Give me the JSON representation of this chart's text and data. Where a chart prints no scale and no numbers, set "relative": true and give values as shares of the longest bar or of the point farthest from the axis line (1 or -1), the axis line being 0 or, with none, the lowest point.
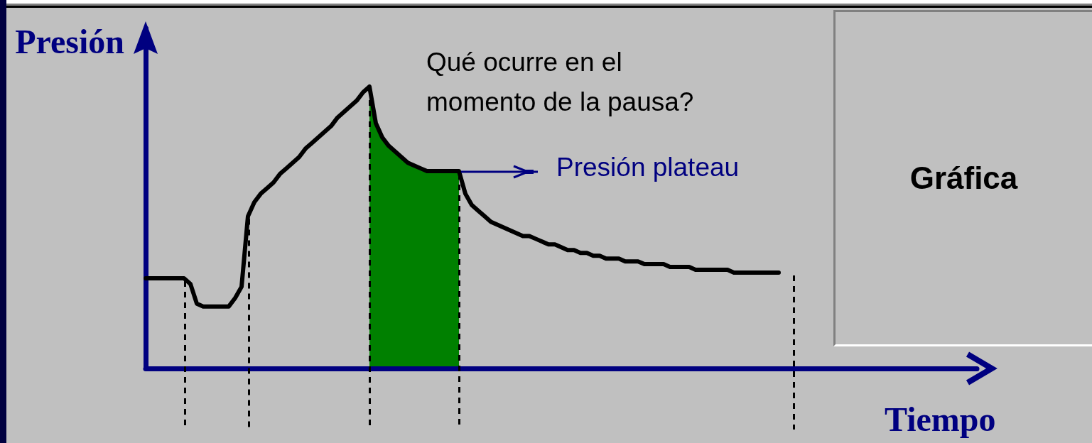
{
  "chart_data": {
    "type": "line",
    "relative": true,
    "xlabel": "Tiempo",
    "ylabel": "Presión",
    "categories": [
      null,
      null,
      null,
      null,
      null,
      null,
      null,
      null,
      null,
      null,
      null,
      null,
      null,
      null,
      null,
      null,
      null,
      null,
      null,
      null,
      null,
      null,
      null,
      null,
      null,
      null,
      null,
      null,
      null,
      null,
      null,
      null,
      null,
      null,
      null,
      null,
      null,
      null,
      null,
      null,
      null,
      null,
      null,
      null,
      null,
      null,
      null,
      null,
      null,
      null,
      null,
      null,
      null,
      null,
      null,
      null,
      null,
      null,
      null,
      null,
      null,
      null,
      null,
      null,
      null,
      null,
      null,
      null,
      null,
      null,
      null,
      null,
      null,
      null,
      null,
      null,
      null,
      null,
      null,
      null,
      null,
      null,
      null,
      null,
      null,
      null,
      null,
      null,
      null,
      null,
      null,
      null,
      null,
      null,
      null,
      null,
      null,
      null,
      null,
      null,
      null,
      null,
      null,
      null,
      null,
      null,
      null,
      null,
      null,
      null,
      null,
      null,
      null,
      null,
      null,
      null,
      null,
      null,
      null,
      null,
      null,
      null,
      null,
      null,
      null,
      null,
      null,
      null,
      null,
      null,
      null
    ],
    "series": [
      {
        "color": "#000000",
        "values": [
          0.32,
          0.32,
          0.32,
          0.32,
          0.32,
          0.32,
          0.32,
          0.3,
          0.23,
          0.22,
          0.22,
          0.22,
          0.22,
          0.22,
          0.25,
          0.29,
          0.54,
          0.59,
          0.62,
          0.64,
          0.66,
          0.69,
          0.71,
          0.73,
          0.75,
          0.78,
          0.8,
          0.82,
          0.84,
          0.86,
          0.89,
          0.91,
          0.93,
          0.95,
          0.98,
          1,
          0.87,
          0.82,
          0.79,
          0.77,
          0.75,
          0.73,
          0.72,
          0.71,
          0.7,
          0.7,
          0.7,
          0.7,
          0.7,
          0.7,
          0.62,
          0.58,
          0.56,
          0.54,
          0.52,
          0.51,
          0.5,
          0.49,
          0.48,
          0.47,
          0.47,
          0.46,
          0.45,
          0.44,
          0.44,
          0.43,
          0.42,
          0.42,
          0.41,
          0.41,
          0.4,
          0.4,
          0.39,
          0.39,
          0.39,
          0.38,
          0.38,
          0.38,
          0.37,
          0.37,
          0.37,
          0.37,
          0.36,
          0.36,
          0.36,
          0.36,
          0.35,
          0.35,
          0.35,
          0.35,
          0.35,
          0.35,
          0.34,
          0.34,
          0.34,
          0.34,
          0.34,
          0.34,
          0.34,
          0.34,
          null,
          null,
          null,
          null,
          null,
          null,
          null,
          null,
          null,
          null,
          null,
          null,
          null,
          null,
          null,
          null,
          null,
          null,
          null,
          null,
          null,
          null,
          null,
          null,
          null,
          null,
          null,
          null,
          null,
          null,
          null
        ]
      },
      {
        "type": "area",
        "color": "#008000",
        "values": [
          null,
          null,
          null,
          null,
          null,
          null,
          null,
          null,
          null,
          null,
          null,
          null,
          null,
          null,
          null,
          null,
          null,
          null,
          null,
          null,
          null,
          null,
          null,
          null,
          null,
          null,
          null,
          null,
          null,
          null,
          null,
          null,
          null,
          null,
          null,
          1,
          0.87,
          0.82,
          0.79,
          0.77,
          0.75,
          0.73,
          0.72,
          0.71,
          0.7,
          0.7,
          0.7,
          0.7,
          0.7,
          0.7,
          null,
          null,
          null,
          null,
          null,
          null,
          null,
          null,
          null,
          null,
          null,
          null,
          null,
          null,
          null,
          null,
          null,
          null,
          null,
          null,
          null,
          null,
          null,
          null,
          null,
          null,
          null,
          null,
          null,
          null,
          null,
          null,
          null,
          null,
          null,
          null,
          null,
          null,
          null,
          null,
          null,
          null,
          null,
          null,
          null,
          null,
          null,
          null,
          null,
          null,
          null,
          null,
          null,
          null,
          null,
          null,
          null,
          null,
          null,
          null,
          null,
          null,
          null,
          null,
          null,
          null,
          null,
          null,
          null,
          null,
          null,
          null,
          null,
          null,
          null,
          null,
          null,
          null,
          null,
          null,
          null
        ]
      }
    ],
    "annotations": [
      "Qué ocurre en el momento de la pausa?",
      "Presión plateau",
      "Gráfica"
    ]
  }
}
